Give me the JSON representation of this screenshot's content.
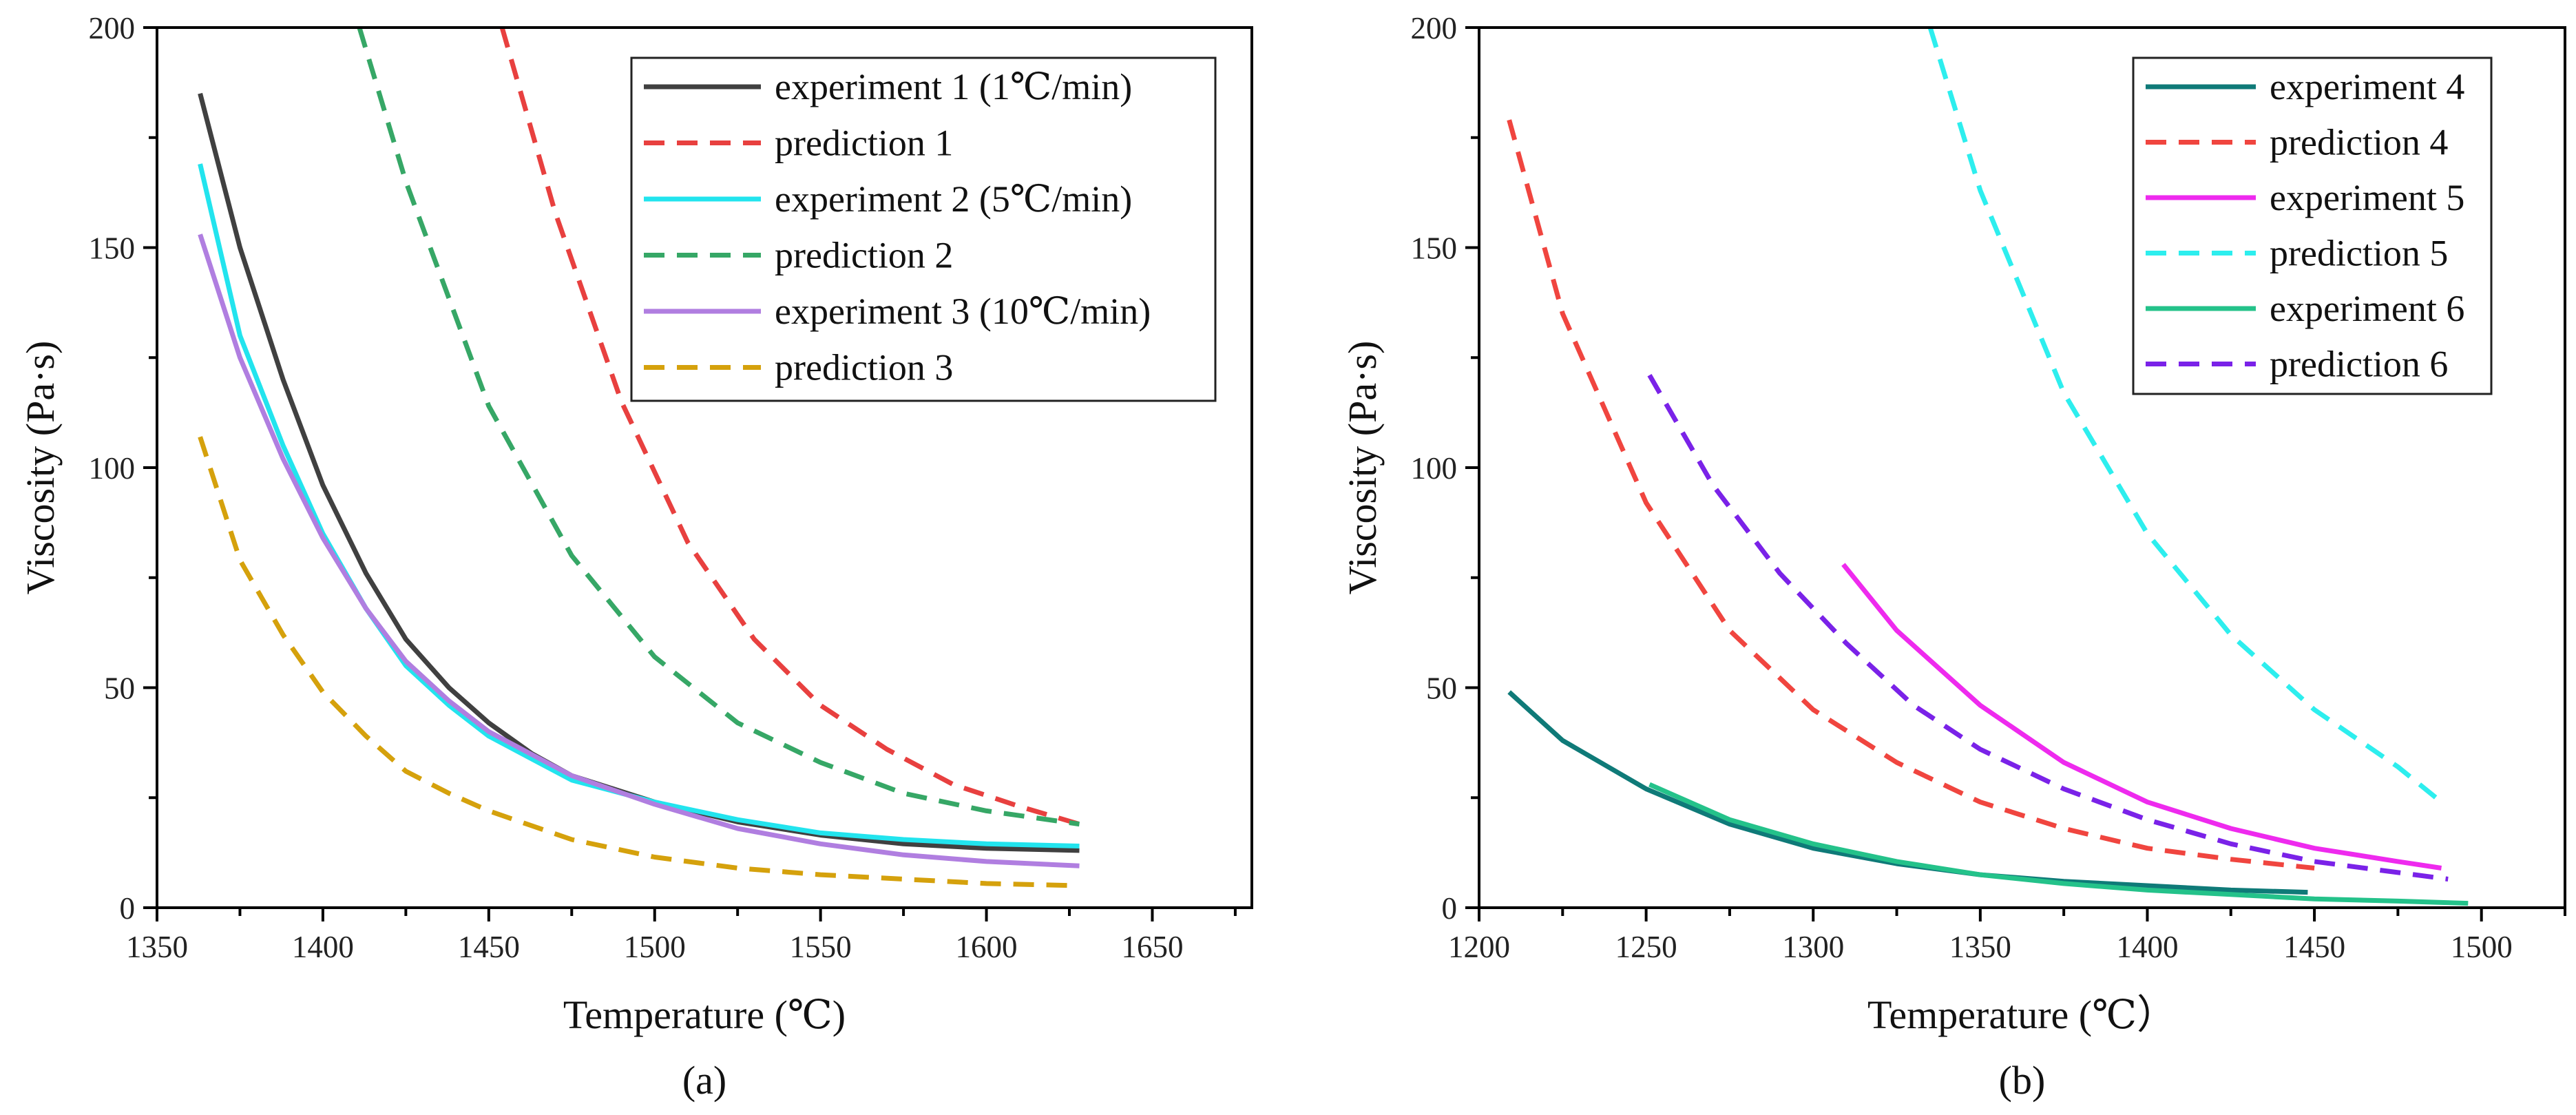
{
  "chart_data": [
    {
      "type": "line",
      "caption": "(a)",
      "xlabel": "Temperature (℃)",
      "ylabel": "Viscosity (Pa·s)",
      "xlim": [
        1350,
        1680
      ],
      "ylim": [
        0,
        200
      ],
      "xticks": [
        1350,
        1400,
        1450,
        1500,
        1550,
        1600,
        1650
      ],
      "yticks": [
        0,
        50,
        100,
        150,
        200
      ],
      "legend_position": "top-right",
      "series": [
        {
          "name": "experiment 1 (1℃/min)",
          "color": "#404040",
          "style": "solid",
          "x": [
            1363,
            1375,
            1388,
            1400,
            1413,
            1425,
            1438,
            1450,
            1463,
            1475,
            1500,
            1525,
            1550,
            1575,
            1600,
            1628
          ],
          "y": [
            185,
            150,
            120,
            96,
            76,
            61,
            50,
            42,
            35,
            30,
            24,
            19.5,
            16.5,
            14.5,
            13.5,
            13
          ]
        },
        {
          "name": "prediction 1",
          "color": "#e8403f",
          "style": "dashed",
          "x": [
            1454,
            1470,
            1490,
            1510,
            1530,
            1550,
            1570,
            1590,
            1610,
            1628
          ],
          "y": [
            200,
            158,
            115,
            83,
            61,
            46,
            36,
            28,
            23,
            19
          ]
        },
        {
          "name": "experiment 2 (5℃/min)",
          "color": "#22e4ee",
          "style": "solid",
          "x": [
            1363,
            1375,
            1388,
            1400,
            1413,
            1425,
            1438,
            1450,
            1475,
            1500,
            1525,
            1550,
            1575,
            1600,
            1628
          ],
          "y": [
            169,
            130,
            105,
            85,
            68,
            55,
            46,
            39,
            29,
            24,
            20,
            17,
            15.5,
            14.5,
            14
          ]
        },
        {
          "name": "prediction 2",
          "color": "#36a766",
          "style": "dashed",
          "x": [
            1411,
            1425,
            1450,
            1475,
            1500,
            1525,
            1550,
            1575,
            1600,
            1628
          ],
          "y": [
            200,
            165,
            114,
            80,
            57,
            42,
            33,
            26,
            22,
            19
          ]
        },
        {
          "name": "experiment 3 (10℃/min)",
          "color": "#b07ee0",
          "style": "solid",
          "x": [
            1363,
            1375,
            1388,
            1400,
            1413,
            1425,
            1438,
            1450,
            1475,
            1500,
            1525,
            1550,
            1575,
            1600,
            1628
          ],
          "y": [
            153,
            125,
            102,
            84,
            68,
            56,
            47,
            40,
            30,
            23.5,
            18,
            14.5,
            12,
            10.5,
            9.5
          ]
        },
        {
          "name": "prediction 3",
          "color": "#d5a10c",
          "style": "dashed",
          "x": [
            1363,
            1375,
            1388,
            1400,
            1413,
            1425,
            1438,
            1450,
            1475,
            1500,
            1525,
            1550,
            1575,
            1600,
            1628
          ],
          "y": [
            107,
            79,
            62,
            49,
            39,
            31,
            26,
            22,
            15.5,
            11.5,
            9,
            7.5,
            6.5,
            5.5,
            5
          ]
        }
      ]
    },
    {
      "type": "line",
      "caption": "(b)",
      "xlabel": "Temperature (℃）",
      "ylabel": "Viscosity (Pa·s)",
      "xlim": [
        1200,
        1525
      ],
      "ylim": [
        0,
        200
      ],
      "xticks": [
        1200,
        1250,
        1300,
        1350,
        1400,
        1450,
        1500
      ],
      "yticks": [
        0,
        50,
        100,
        150,
        200
      ],
      "legend_position": "top-right",
      "series": [
        {
          "name": "experiment 4",
          "color": "#0f7a78",
          "style": "solid",
          "x": [
            1209,
            1225,
            1250,
            1275,
            1300,
            1325,
            1350,
            1375,
            1400,
            1425,
            1448
          ],
          "y": [
            49,
            38,
            27,
            19,
            13.5,
            10,
            7.5,
            6,
            5,
            4,
            3.5
          ]
        },
        {
          "name": "prediction 4",
          "color": "#f0453f",
          "style": "dashed",
          "x": [
            1209,
            1225,
            1250,
            1275,
            1300,
            1325,
            1350,
            1375,
            1400,
            1425,
            1450
          ],
          "y": [
            179,
            135,
            92,
            63,
            45,
            33,
            24,
            18,
            13.5,
            11,
            9
          ]
        },
        {
          "name": "experiment 5",
          "color": "#ee2aee",
          "style": "solid",
          "x": [
            1309,
            1325,
            1350,
            1375,
            1400,
            1425,
            1450,
            1475,
            1488
          ],
          "y": [
            78,
            63,
            46,
            33,
            24,
            18,
            13.5,
            10.5,
            9
          ]
        },
        {
          "name": "prediction 5",
          "color": "#2deeee",
          "style": "dashed",
          "x": [
            1335,
            1350,
            1375,
            1400,
            1425,
            1450,
            1475,
            1488
          ],
          "y": [
            200,
            163,
            117,
            85,
            62,
            45,
            32,
            24
          ]
        },
        {
          "name": "experiment 6",
          "color": "#24c28a",
          "style": "solid",
          "x": [
            1251,
            1275,
            1300,
            1325,
            1350,
            1375,
            1400,
            1425,
            1450,
            1475,
            1496
          ],
          "y": [
            28,
            20,
            14.5,
            10.5,
            7.5,
            5.5,
            4,
            3,
            2,
            1.5,
            1
          ]
        },
        {
          "name": "prediction 6",
          "color": "#7a22e8",
          "style": "dashed",
          "x": [
            1251,
            1270,
            1290,
            1310,
            1330,
            1350,
            1375,
            1400,
            1425,
            1450,
            1475,
            1490
          ],
          "y": [
            121,
            96,
            76,
            60,
            46,
            36,
            27,
            20,
            14.5,
            10.5,
            8,
            6.5
          ]
        }
      ]
    }
  ]
}
